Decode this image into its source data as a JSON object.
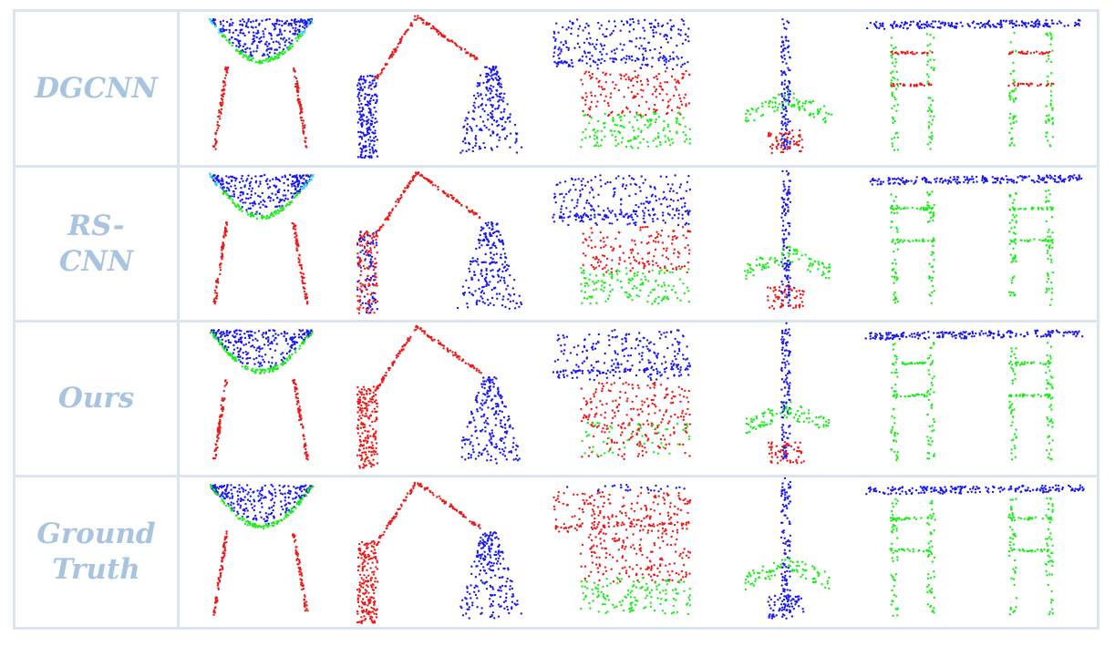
{
  "figure": {
    "rows": [
      {
        "label_lines": [
          "DGCNN"
        ]
      },
      {
        "label_lines": [
          "RS-",
          "CNN"
        ]
      },
      {
        "label_lines": [
          "Ours"
        ]
      },
      {
        "label_lines": [
          "Ground",
          "Truth"
        ]
      }
    ],
    "shapes": [
      "chair",
      "lamp",
      "table",
      "airplane",
      "bench"
    ],
    "palette": {
      "blue": "#1a1aee",
      "red": "#ee1a1a",
      "green": "#1aee1a",
      "cyan": "#33dddd",
      "border": "#dbe5ef",
      "label": "#a9c4df"
    },
    "segmentations": [
      {
        "chair": "blue-seat-cyan-rim",
        "lamp": "blue-base",
        "table": "blue-top-green-bottom",
        "airplane": "green-wings-red-tail",
        "bench": "blue-top-red-rungs"
      },
      {
        "chair": "blue-seat-cyan-rim",
        "lamp": "mixed-base",
        "table": "blue-top-green-bottom",
        "airplane": "green-wings-red-tail",
        "bench": "blue-top-green-legs"
      },
      {
        "chair": "blue-seat-green-rim",
        "lamp": "red-base",
        "table": "blue-top-red-middle",
        "airplane": "green-wings-red-tail",
        "bench": "blue-top-green-legs"
      },
      {
        "chair": "blue-seat-green-rim",
        "lamp": "red-base",
        "table": "red-top-green-bottom",
        "airplane": "green-wings-blue-body",
        "bench": "blue-top-green-legs"
      }
    ]
  }
}
